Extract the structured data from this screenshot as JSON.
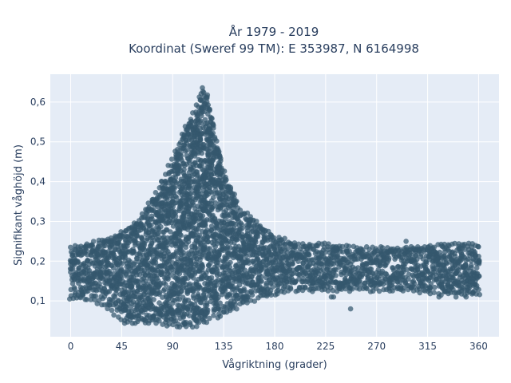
{
  "chart_data": {
    "type": "scatter",
    "title_line1": "År 1979 - 2019",
    "title_line2": "Koordinat (Sweref 99 TM): E 353987, N 6164998",
    "xlabel": "Vågriktning (grader)",
    "ylabel": "Signifikant våghöjd (m)",
    "xlim": [
      -18,
      378
    ],
    "ylim": [
      0.01,
      0.67
    ],
    "x_ticks": [
      0,
      45,
      90,
      135,
      180,
      225,
      270,
      315,
      360
    ],
    "y_ticks": [
      0.1,
      0.2,
      0.3,
      0.4,
      0.5,
      0.6
    ],
    "y_tick_labels": [
      "0,1",
      "0,2",
      "0,3",
      "0,4",
      "0,5",
      "0,6"
    ],
    "grid": true,
    "marker_color": "#34576e",
    "plot_background": "#e5ecf6",
    "envelope": [
      {
        "x": 0,
        "ymin": 0.11,
        "ymax": 0.23
      },
      {
        "x": 15,
        "ymin": 0.11,
        "ymax": 0.24
      },
      {
        "x": 30,
        "ymin": 0.09,
        "ymax": 0.25
      },
      {
        "x": 45,
        "ymin": 0.05,
        "ymax": 0.27
      },
      {
        "x": 60,
        "ymin": 0.05,
        "ymax": 0.3
      },
      {
        "x": 75,
        "ymin": 0.05,
        "ymax": 0.37
      },
      {
        "x": 90,
        "ymin": 0.04,
        "ymax": 0.45
      },
      {
        "x": 100,
        "ymin": 0.04,
        "ymax": 0.52
      },
      {
        "x": 110,
        "ymin": 0.04,
        "ymax": 0.58
      },
      {
        "x": 118,
        "ymin": 0.05,
        "ymax": 0.64
      },
      {
        "x": 125,
        "ymin": 0.06,
        "ymax": 0.56
      },
      {
        "x": 135,
        "ymin": 0.07,
        "ymax": 0.42
      },
      {
        "x": 150,
        "ymin": 0.09,
        "ymax": 0.33
      },
      {
        "x": 165,
        "ymin": 0.11,
        "ymax": 0.29
      },
      {
        "x": 180,
        "ymin": 0.12,
        "ymax": 0.26
      },
      {
        "x": 200,
        "ymin": 0.13,
        "ymax": 0.24
      },
      {
        "x": 225,
        "ymin": 0.13,
        "ymax": 0.24
      },
      {
        "x": 250,
        "ymin": 0.13,
        "ymax": 0.23
      },
      {
        "x": 270,
        "ymin": 0.13,
        "ymax": 0.23
      },
      {
        "x": 300,
        "ymin": 0.13,
        "ymax": 0.23
      },
      {
        "x": 330,
        "ymin": 0.12,
        "ymax": 0.24
      },
      {
        "x": 360,
        "ymin": 0.12,
        "ymax": 0.24
      }
    ],
    "outliers": [
      {
        "x": 247,
        "y": 0.08
      },
      {
        "x": 230,
        "y": 0.11
      },
      {
        "x": 296,
        "y": 0.25
      },
      {
        "x": 325,
        "y": 0.11
      },
      {
        "x": 340,
        "y": 0.11
      },
      {
        "x": 349,
        "y": 0.11
      },
      {
        "x": 355,
        "y": 0.12
      },
      {
        "x": 232,
        "y": 0.11
      },
      {
        "x": 153,
        "y": 0.32
      },
      {
        "x": 164,
        "y": 0.3
      },
      {
        "x": 128,
        "y": 0.47
      }
    ]
  }
}
